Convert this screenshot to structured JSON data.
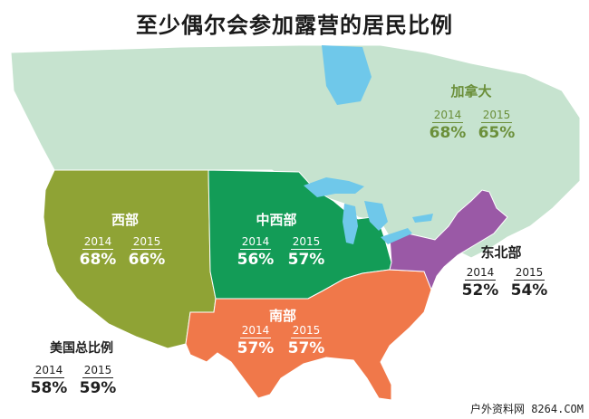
{
  "title": "至少偶尔会参加露营的居民比例",
  "colors": {
    "canada": "#c6e3cf",
    "west": "#8fa335",
    "midwest": "#139c57",
    "south": "#f0784a",
    "northeast": "#9a59a6",
    "water": "#6fc8ea"
  },
  "regions": {
    "canada": {
      "name": "加拿大",
      "y2014_label": "2014",
      "y2014_value": "68%",
      "y2015_label": "2015",
      "y2015_value": "65%"
    },
    "west": {
      "name": "西部",
      "y2014_label": "2014",
      "y2014_value": "68%",
      "y2015_label": "2015",
      "y2015_value": "66%"
    },
    "midwest": {
      "name": "中西部",
      "y2014_label": "2014",
      "y2014_value": "56%",
      "y2015_label": "2015",
      "y2015_value": "57%"
    },
    "south": {
      "name": "南部",
      "y2014_label": "2014",
      "y2014_value": "57%",
      "y2015_label": "2015",
      "y2015_value": "57%"
    },
    "northeast": {
      "name": "东北部",
      "y2014_label": "2014",
      "y2014_value": "52%",
      "y2015_label": "2015",
      "y2015_value": "54%"
    },
    "us_total": {
      "name": "美国总比例",
      "y2014_label": "2014",
      "y2014_value": "58%",
      "y2015_label": "2015",
      "y2015_value": "59%"
    }
  },
  "watermark": "户外资料网 8264.COM"
}
